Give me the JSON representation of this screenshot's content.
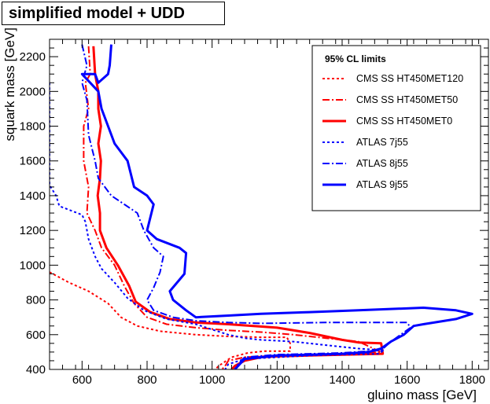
{
  "chart_data": {
    "type": "line",
    "title": "simplified model + UDD",
    "xlabel": "gluino mass [GeV]",
    "ylabel": "squark mass [GeV]",
    "xlim": [
      500,
      1850
    ],
    "ylim": [
      400,
      2300
    ],
    "x_ticks": [
      600,
      800,
      1000,
      1200,
      1400,
      1600,
      1800
    ],
    "y_ticks": [
      400,
      600,
      800,
      1000,
      1200,
      1400,
      1600,
      1800,
      2000,
      2200
    ],
    "legend_title": "95% CL limits",
    "legend_position": "top-right",
    "series": [
      {
        "name": "CMS SS HT450MET120",
        "color": "#ff0000",
        "style": "dotted",
        "points": [
          [
            500,
            960
          ],
          [
            560,
            900
          ],
          [
            620,
            850
          ],
          [
            680,
            780
          ],
          [
            720,
            700
          ],
          [
            770,
            650
          ],
          [
            840,
            620
          ],
          [
            950,
            600
          ],
          [
            1050,
            590
          ],
          [
            1150,
            585
          ],
          [
            1230,
            585
          ],
          [
            1240,
            550
          ],
          [
            1240,
            505
          ],
          [
            1160,
            505
          ],
          [
            1110,
            495
          ],
          [
            1060,
            470
          ],
          [
            1020,
            420
          ],
          [
            1010,
            400
          ]
        ]
      },
      {
        "name": "CMS SS HT450MET50",
        "color": "#ff0000",
        "style": "dashdot",
        "points": [
          [
            620,
            2260
          ],
          [
            625,
            2100
          ],
          [
            610,
            2050
          ],
          [
            620,
            1900
          ],
          [
            605,
            1800
          ],
          [
            605,
            1600
          ],
          [
            620,
            1450
          ],
          [
            615,
            1300
          ],
          [
            640,
            1200
          ],
          [
            660,
            1100
          ],
          [
            700,
            1000
          ],
          [
            730,
            880
          ],
          [
            760,
            780
          ],
          [
            800,
            700
          ],
          [
            860,
            660
          ],
          [
            950,
            640
          ],
          [
            1050,
            625
          ],
          [
            1150,
            615
          ],
          [
            1250,
            600
          ],
          [
            1350,
            580
          ],
          [
            1450,
            560
          ],
          [
            1520,
            500
          ],
          [
            1400,
            490
          ],
          [
            1300,
            485
          ],
          [
            1200,
            480
          ],
          [
            1100,
            470
          ],
          [
            1050,
            450
          ],
          [
            1040,
            420
          ],
          [
            1030,
            400
          ]
        ]
      },
      {
        "name": "CMS SS HT450MET0",
        "color": "#ff0000",
        "style": "solid",
        "points": [
          [
            635,
            2260
          ],
          [
            640,
            2100
          ],
          [
            650,
            2000
          ],
          [
            650,
            1900
          ],
          [
            658,
            1800
          ],
          [
            650,
            1700
          ],
          [
            658,
            1600
          ],
          [
            655,
            1500
          ],
          [
            648,
            1400
          ],
          [
            655,
            1300
          ],
          [
            655,
            1200
          ],
          [
            675,
            1100
          ],
          [
            710,
            1000
          ],
          [
            745,
            880
          ],
          [
            765,
            790
          ],
          [
            810,
            730
          ],
          [
            870,
            690
          ],
          [
            950,
            670
          ],
          [
            1050,
            660
          ],
          [
            1200,
            640
          ],
          [
            1300,
            610
          ],
          [
            1400,
            570
          ],
          [
            1450,
            555
          ],
          [
            1520,
            550
          ],
          [
            1525,
            490
          ],
          [
            1400,
            485
          ],
          [
            1300,
            480
          ],
          [
            1200,
            475
          ],
          [
            1150,
            470
          ],
          [
            1100,
            450
          ],
          [
            1070,
            420
          ],
          [
            1060,
            400
          ]
        ]
      },
      {
        "name": "ATLAS 7j55",
        "color": "#0000ff",
        "style": "dotted",
        "points": [
          [
            500,
            2050
          ],
          [
            500,
            1950
          ],
          [
            500,
            1820
          ],
          [
            500,
            1460
          ],
          [
            520,
            1400
          ],
          [
            530,
            1340
          ],
          [
            600,
            1290
          ],
          [
            610,
            1250
          ],
          [
            620,
            1150
          ],
          [
            640,
            1050
          ],
          [
            660,
            980
          ],
          [
            700,
            900
          ],
          [
            740,
            810
          ],
          [
            790,
            740
          ],
          [
            860,
            690
          ],
          [
            950,
            660
          ],
          [
            1000,
            630
          ],
          [
            1050,
            600
          ],
          [
            1100,
            580
          ],
          [
            1150,
            570
          ],
          [
            1250,
            560
          ],
          [
            1350,
            540
          ],
          [
            1450,
            520
          ],
          [
            1530,
            510
          ],
          [
            1510,
            490
          ],
          [
            1400,
            485
          ],
          [
            1300,
            480
          ],
          [
            1200,
            470
          ],
          [
            1100,
            460
          ],
          [
            1050,
            430
          ],
          [
            1040,
            400
          ]
        ]
      },
      {
        "name": "ATLAS 8j55",
        "color": "#0000ff",
        "style": "dashdot",
        "points": [
          [
            600,
            2270
          ],
          [
            615,
            2150
          ],
          [
            600,
            2050
          ],
          [
            615,
            1950
          ],
          [
            620,
            1750
          ],
          [
            640,
            1600
          ],
          [
            650,
            1500
          ],
          [
            690,
            1400
          ],
          [
            730,
            1350
          ],
          [
            770,
            1300
          ],
          [
            790,
            1200
          ],
          [
            820,
            1100
          ],
          [
            850,
            1050
          ],
          [
            840,
            960
          ],
          [
            820,
            870
          ],
          [
            800,
            800
          ],
          [
            820,
            740
          ],
          [
            880,
            700
          ],
          [
            950,
            680
          ],
          [
            1050,
            670
          ],
          [
            1150,
            665
          ],
          [
            1350,
            670
          ],
          [
            1450,
            670
          ],
          [
            1600,
            670
          ],
          [
            1610,
            640
          ],
          [
            1580,
            600
          ],
          [
            1550,
            560
          ],
          [
            1520,
            510
          ],
          [
            1400,
            495
          ],
          [
            1300,
            490
          ],
          [
            1200,
            485
          ],
          [
            1100,
            470
          ],
          [
            1080,
            430
          ],
          [
            1070,
            400
          ]
        ]
      },
      {
        "name": "ATLAS 9j55",
        "color": "#0000ff",
        "style": "solid",
        "points": [
          [
            690,
            2270
          ],
          [
            685,
            2150
          ],
          [
            680,
            2100
          ],
          [
            650,
            2050
          ],
          [
            640,
            2100
          ],
          [
            600,
            2100
          ],
          [
            650,
            2000
          ],
          [
            660,
            1900
          ],
          [
            700,
            1700
          ],
          [
            740,
            1600
          ],
          [
            760,
            1450
          ],
          [
            800,
            1400
          ],
          [
            820,
            1350
          ],
          [
            800,
            1200
          ],
          [
            830,
            1150
          ],
          [
            900,
            1100
          ],
          [
            920,
            1070
          ],
          [
            915,
            950
          ],
          [
            870,
            850
          ],
          [
            880,
            800
          ],
          [
            920,
            740
          ],
          [
            950,
            700
          ],
          [
            1050,
            710
          ],
          [
            1150,
            720
          ],
          [
            1300,
            730
          ],
          [
            1450,
            740
          ],
          [
            1650,
            755
          ],
          [
            1750,
            740
          ],
          [
            1800,
            720
          ],
          [
            1750,
            690
          ],
          [
            1650,
            660
          ],
          [
            1620,
            650
          ],
          [
            1590,
            600
          ],
          [
            1550,
            560
          ],
          [
            1520,
            520
          ],
          [
            1480,
            500
          ],
          [
            1400,
            490
          ],
          [
            1300,
            485
          ],
          [
            1200,
            480
          ],
          [
            1100,
            460
          ],
          [
            1080,
            420
          ],
          [
            1070,
            400
          ]
        ]
      }
    ]
  }
}
